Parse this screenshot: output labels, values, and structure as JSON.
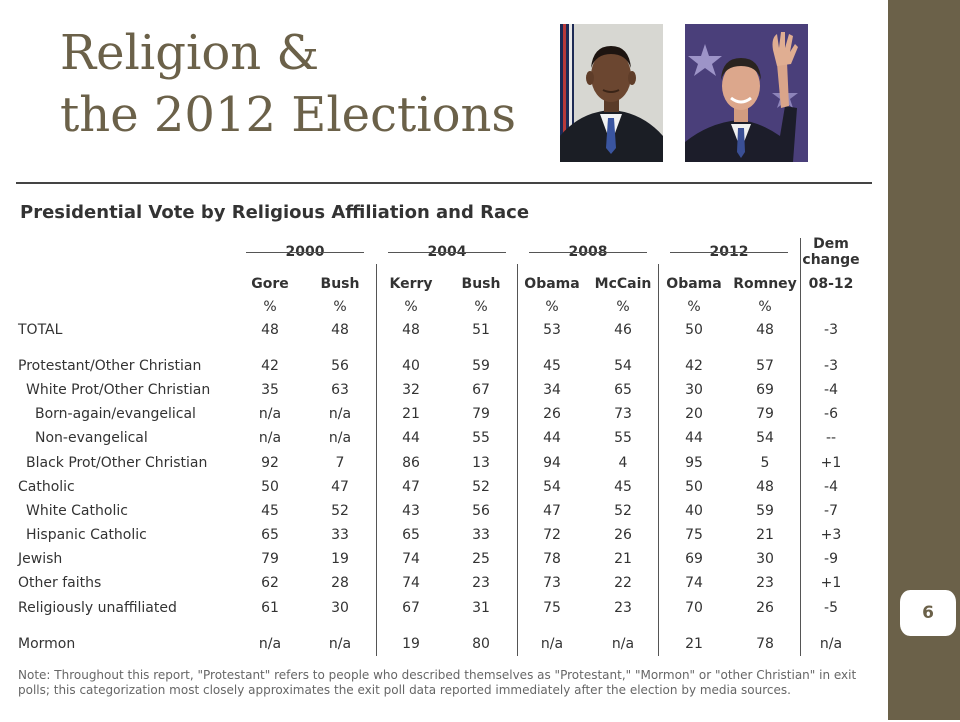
{
  "slide": {
    "title_line1": "Religion &",
    "title_line2": "the 2012 Elections",
    "page_number": "6",
    "colors": {
      "accent": "#6b6149",
      "sidebar": "#6b6149"
    }
  },
  "photos": [
    {
      "name": "obama-photo"
    },
    {
      "name": "romney-photo"
    }
  ],
  "table": {
    "title": "Presidential Vote by Religious Affiliation and Race",
    "years": [
      "2000",
      "2004",
      "2008",
      "2012"
    ],
    "dem_change_label_line1": "Dem",
    "dem_change_label_line2": "change",
    "dem_change_label_line3": "08-12",
    "candidates": [
      "Gore",
      "Bush",
      "Kerry",
      "Bush",
      "Obama",
      "McCain",
      "Obama",
      "Romney"
    ],
    "percent_symbol": "%",
    "rows": [
      {
        "label": "TOTAL",
        "indent": 0,
        "values": [
          "48",
          "48",
          "48",
          "51",
          "53",
          "46",
          "50",
          "48",
          "-3"
        ]
      },
      {
        "label": "Protestant/Other Christian",
        "indent": 0,
        "values": [
          "42",
          "56",
          "40",
          "59",
          "45",
          "54",
          "42",
          "57",
          "-3"
        ]
      },
      {
        "label": "White Prot/Other Christian",
        "indent": 1,
        "values": [
          "35",
          "63",
          "32",
          "67",
          "34",
          "65",
          "30",
          "69",
          "-4"
        ]
      },
      {
        "label": "Born-again/evangelical",
        "indent": 2,
        "values": [
          "n/a",
          "n/a",
          "21",
          "79",
          "26",
          "73",
          "20",
          "79",
          "-6"
        ]
      },
      {
        "label": "Non-evangelical",
        "indent": 2,
        "values": [
          "n/a",
          "n/a",
          "44",
          "55",
          "44",
          "55",
          "44",
          "54",
          "--"
        ]
      },
      {
        "label": "Black Prot/Other Christian",
        "indent": 1,
        "values": [
          "92",
          "7",
          "86",
          "13",
          "94",
          "4",
          "95",
          "5",
          "+1"
        ]
      },
      {
        "label": "Catholic",
        "indent": 0,
        "values": [
          "50",
          "47",
          "47",
          "52",
          "54",
          "45",
          "50",
          "48",
          "-4"
        ]
      },
      {
        "label": "White Catholic",
        "indent": 1,
        "values": [
          "45",
          "52",
          "43",
          "56",
          "47",
          "52",
          "40",
          "59",
          "-7"
        ]
      },
      {
        "label": "Hispanic Catholic",
        "indent": 1,
        "values": [
          "65",
          "33",
          "65",
          "33",
          "72",
          "26",
          "75",
          "21",
          "+3"
        ]
      },
      {
        "label": "Jewish",
        "indent": 0,
        "values": [
          "79",
          "19",
          "74",
          "25",
          "78",
          "21",
          "69",
          "30",
          "-9"
        ]
      },
      {
        "label": "Other faiths",
        "indent": 0,
        "values": [
          "62",
          "28",
          "74",
          "23",
          "73",
          "22",
          "74",
          "23",
          "+1"
        ]
      },
      {
        "label": "Religiously unaffiliated",
        "indent": 0,
        "values": [
          "61",
          "30",
          "67",
          "31",
          "75",
          "23",
          "70",
          "26",
          "-5"
        ]
      },
      {
        "label": "Mormon",
        "indent": 0,
        "values": [
          "n/a",
          "n/a",
          "19",
          "80",
          "n/a",
          "n/a",
          "21",
          "78",
          "n/a"
        ]
      }
    ],
    "note": "Note: Throughout this report, \"Protestant\" refers to people who described themselves as \"Protestant,\" \"Mormon\" or \"other Christian\" in exit polls; this categorization most closely approximates the exit poll data reported immediately after the election by media sources."
  }
}
